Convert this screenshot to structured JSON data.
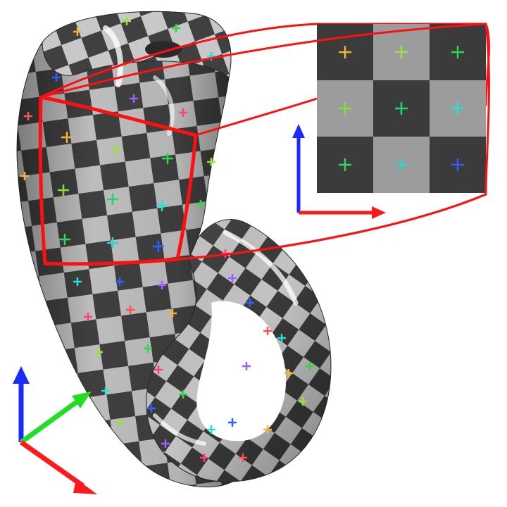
{
  "figure": {
    "description_visible_text": "",
    "colors": {
      "background": "#ffffff",
      "checker_dark": "#3b3b3b",
      "checker_light": "#9c9c9c",
      "surface_dark": "#3f3f3f",
      "surface_light": "#bdbdbd",
      "highlight": "#ffffff",
      "outline": "#ff1010",
      "axis_x": "#ff1a1a",
      "axis_y": "#22dd22",
      "axis_z": "#1a2bff"
    },
    "inset": {
      "grid_size": 3,
      "cross_colors": [
        [
          "#f5b335",
          "#9be33b",
          "#2fd84a"
        ],
        [
          "#7fe03a",
          "#22d66a",
          "#28e0d8"
        ],
        [
          "#31d65a",
          "#2ad8d2",
          "#3060ff"
        ]
      ]
    },
    "surface_cross_palette": [
      "#f5b335",
      "#9be33b",
      "#2fd84a",
      "#28e0d8",
      "#3060ff",
      "#a060ff",
      "#ff3d8a",
      "#ff5050"
    ],
    "icons": {
      "world_axes": "xyz-axes-icon",
      "uv_axes": "uv-axes-icon"
    }
  }
}
